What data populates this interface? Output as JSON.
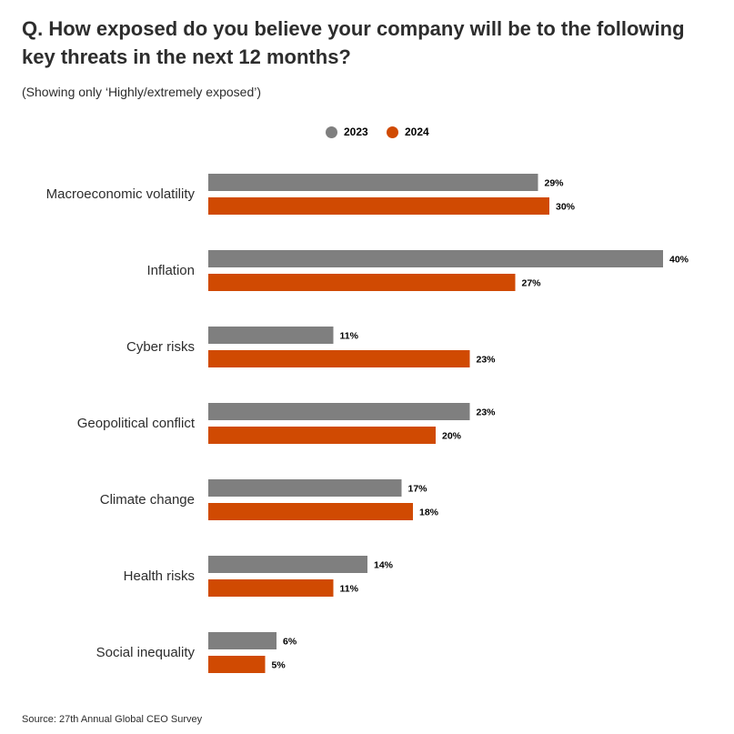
{
  "chart_data": {
    "type": "bar",
    "orientation": "horizontal",
    "title": "Q. How exposed do you believe your company will be to the following key threats in the next 12 months?",
    "subtitle": "(Showing only ‘Highly/extremely exposed’)",
    "categories": [
      "Macroeconomic volatility",
      "Inflation",
      "Cyber risks",
      "Geopolitical conflict",
      "Climate change",
      "Health risks",
      "Social inequality"
    ],
    "series": [
      {
        "name": "2023",
        "color": "#7f7f7f",
        "values": [
          29,
          40,
          11,
          23,
          17,
          14,
          6
        ]
      },
      {
        "name": "2024",
        "color": "#d04a02",
        "values": [
          30,
          27,
          23,
          20,
          18,
          11,
          5
        ]
      }
    ],
    "value_suffix": "%",
    "xlim": [
      0,
      40
    ],
    "grid": false,
    "legend_placement": "top-center",
    "source": "Source: 27th Annual Global CEO Survey"
  }
}
